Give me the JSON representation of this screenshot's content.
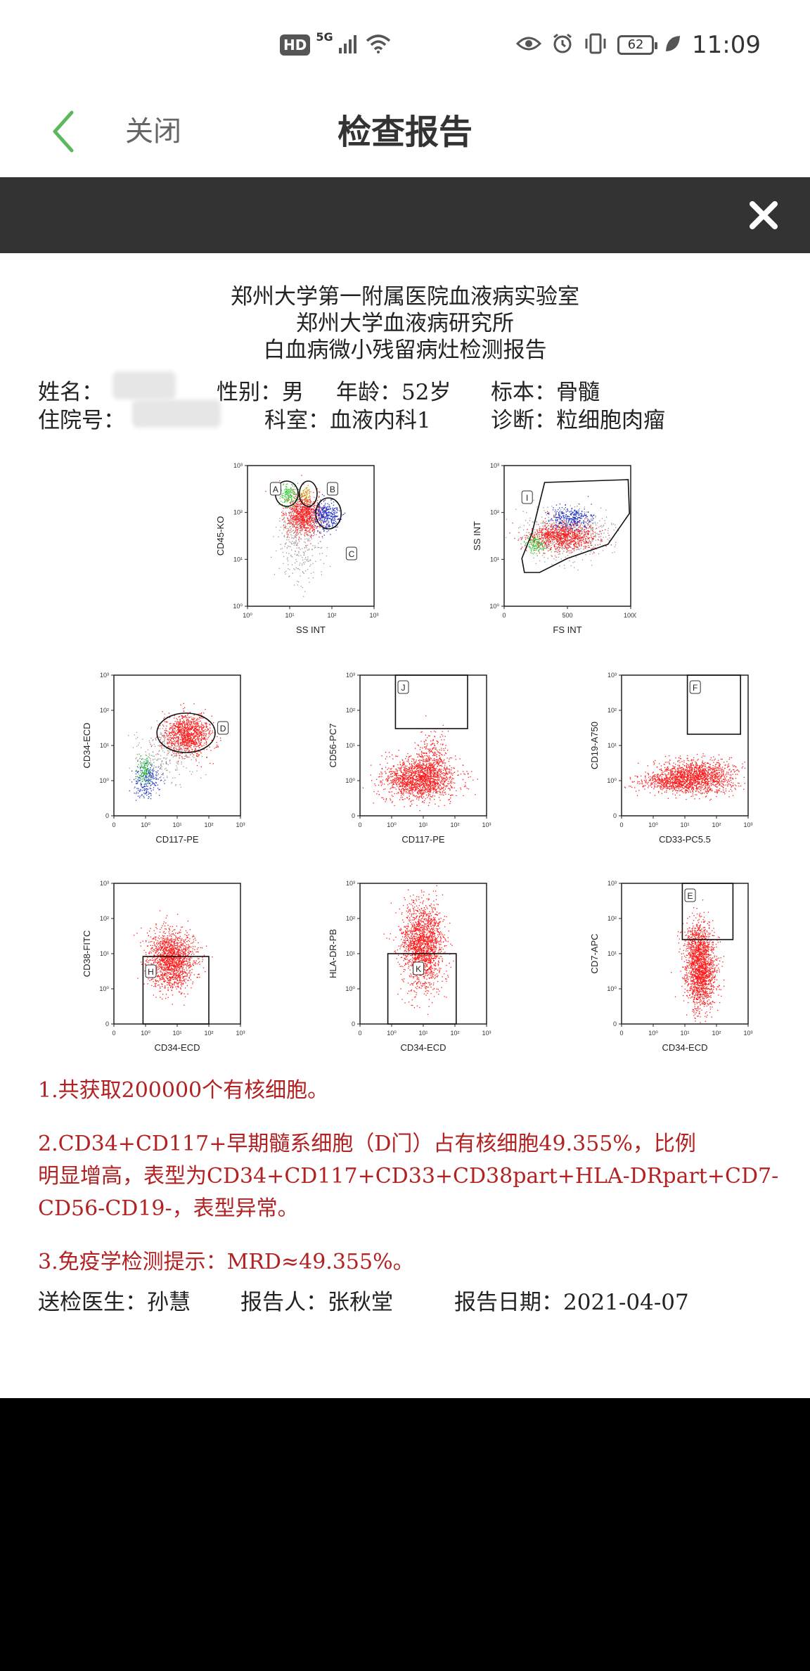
{
  "status_bar": {
    "hd": "HD",
    "net": "5G",
    "battery": "62",
    "time": "11:09"
  },
  "header": {
    "back_icon": "chevron-left-icon",
    "close_label": "关闭",
    "title": "检查报告"
  },
  "viewer": {
    "close_icon": "close-icon"
  },
  "report": {
    "title_lines": [
      "郑州大学第一附属医院血液病实验室",
      "郑州大学血液病研究所",
      "白血病微小残留病灶检测报告"
    ],
    "name_label": "姓名：",
    "sex": "性别：男",
    "age": "年龄：52岁",
    "specimen": "标本：骨髓",
    "inpatient_label": "住院号：",
    "dept": "科室：血液内科1",
    "diagnosis": "诊断：粒细胞肉瘤",
    "plots": [
      {
        "id": "p1",
        "xlabel": "SS INT",
        "ylabel": "CD45-KO",
        "xticks": [
          "10⁰",
          "10¹",
          "10²",
          "10³"
        ],
        "yticks": [
          "10³",
          "10²",
          "10¹",
          "10⁰"
        ],
        "gates": [
          "A",
          "B",
          "C"
        ]
      },
      {
        "id": "p2",
        "xlabel": "FS INT",
        "ylabel": "SS INT",
        "xticks": [
          "0",
          "500",
          "1000"
        ],
        "yticks": [
          "10³",
          "10²",
          "10¹",
          "10⁰"
        ],
        "gates": [
          "I"
        ]
      },
      {
        "id": "p3",
        "xlabel": "CD117-PE",
        "ylabel": "CD34-ECD",
        "xticks": [
          "0",
          "10⁰",
          "10¹",
          "10²",
          "10³"
        ],
        "yticks": [
          "10³",
          "10²",
          "10¹",
          "10⁰",
          "0"
        ],
        "gates": [
          "D"
        ]
      },
      {
        "id": "p4",
        "xlabel": "CD117-PE",
        "ylabel": "CD56-PC7",
        "xticks": [
          "0",
          "10⁰",
          "10¹",
          "10²",
          "10³"
        ],
        "yticks": [
          "10³",
          "10²",
          "10¹",
          "10⁰",
          "0"
        ],
        "gates": [
          "J"
        ]
      },
      {
        "id": "p5",
        "xlabel": "CD33-PC5.5",
        "ylabel": "CD19-A750",
        "xticks": [
          "0",
          "10⁰",
          "10¹",
          "10²",
          "10³"
        ],
        "yticks": [
          "10³",
          "10²",
          "10¹",
          "10⁰",
          "0"
        ],
        "gates": [
          "F"
        ]
      },
      {
        "id": "p6",
        "xlabel": "CD34-ECD",
        "ylabel": "CD38-FITC",
        "xticks": [
          "0",
          "10⁰",
          "10¹",
          "10²",
          "10³"
        ],
        "yticks": [
          "10³",
          "10²",
          "10¹",
          "10⁰",
          "0"
        ],
        "gates": [
          "H"
        ]
      },
      {
        "id": "p7",
        "xlabel": "CD34-ECD",
        "ylabel": "HLA-DR-PB",
        "xticks": [
          "0",
          "10⁰",
          "10¹",
          "10²",
          "10³"
        ],
        "yticks": [
          "10³",
          "10²",
          "10¹",
          "10⁰",
          "0"
        ],
        "gates": [
          "K"
        ]
      },
      {
        "id": "p8",
        "xlabel": "CD34-ECD",
        "ylabel": "CD7-APC",
        "xticks": [
          "0",
          "10⁰",
          "10¹",
          "10²",
          "10³"
        ],
        "yticks": [
          "10³",
          "10²",
          "10¹",
          "10⁰",
          "0"
        ],
        "gates": [
          "E"
        ]
      }
    ],
    "result1": "1.共获取200000个有核细胞。",
    "result2_lines": [
      "2.CD34+CD117+早期髓系细胞（D门）占有核细胞49.355%，比例",
      "明显增高，表型为CD34+CD117+CD33+CD38part+HLA-DRpart+CD7-",
      "CD56-CD19-，表型异常。"
    ],
    "result3": "3.免疫学检测提示：MRD≈49.355%。",
    "doctor": "送检医生：孙慧",
    "reporter": "报告人：张秋堂",
    "date": "报告日期：2021-04-07"
  },
  "colors": {
    "accent_green": "#5cb85c",
    "dark_bar": "#333333",
    "result_red": "#b22222",
    "dot_red": "#ff1a1a",
    "dot_blue": "#2233cc",
    "dot_green": "#33cc33"
  }
}
